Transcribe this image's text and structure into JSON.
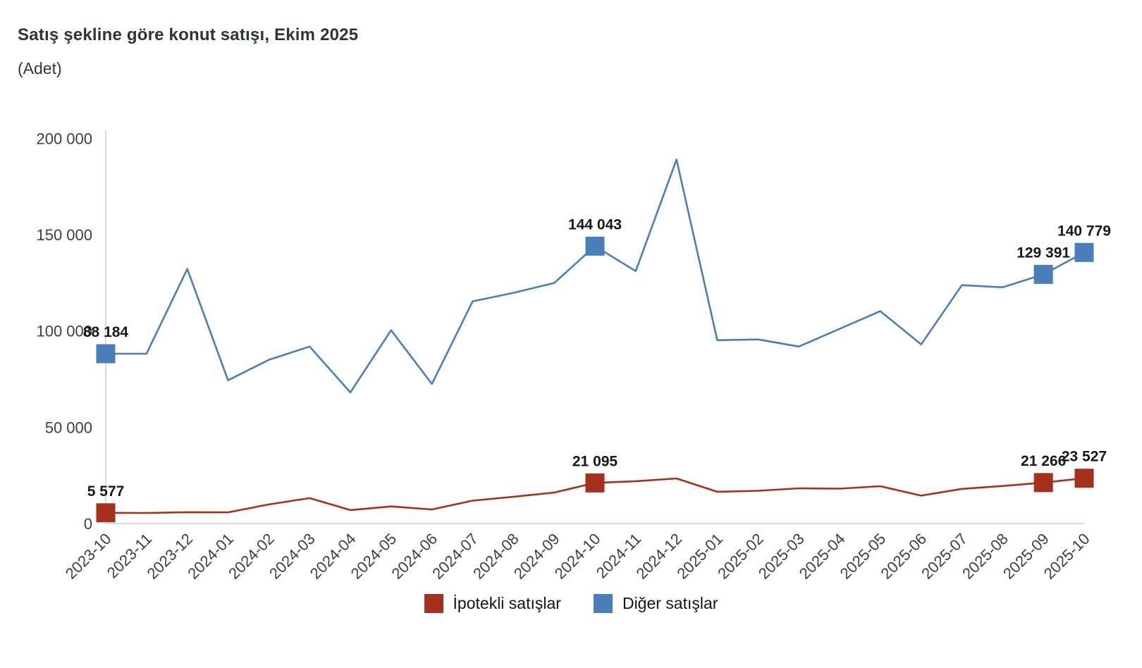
{
  "title": "Satış şekline göre konut satışı, Ekim 2025",
  "subtitle": "(Adet)",
  "colors": {
    "ipotekli": "#A5301E",
    "diger": "#4A7EBB",
    "axis_line": "#DBDBDB",
    "tick_text": "#3C4044",
    "annotation_text": "#15181b"
  },
  "legend": {
    "items": [
      {
        "id": "ipotekli",
        "label": "İpotekli satışlar",
        "color": "#A5301E"
      },
      {
        "id": "diger",
        "label": "Diğer satışlar",
        "color": "#4A7EBB"
      }
    ]
  },
  "chart_data": {
    "type": "line",
    "title": "Satış şekline göre konut satışı, Ekim 2025",
    "subtitle": "(Adet)",
    "x": [
      "2023-10",
      "2023-11",
      "2023-12",
      "2024-01",
      "2024-02",
      "2024-03",
      "2024-04",
      "2024-05",
      "2024-06",
      "2024-07",
      "2024-08",
      "2024-09",
      "2024-10",
      "2024-11",
      "2024-12",
      "2025-01",
      "2025-02",
      "2025-03",
      "2025-04",
      "2025-05",
      "2025-06",
      "2025-07",
      "2025-08",
      "2025-09",
      "2025-10"
    ],
    "ylim": [
      0,
      200000
    ],
    "yticks": [
      {
        "value": 0,
        "label": "0"
      },
      {
        "value": 50000,
        "label": "50 000"
      },
      {
        "value": 100000,
        "label": "100 000"
      },
      {
        "value": 150000,
        "label": "150 000"
      },
      {
        "value": 200000,
        "label": "200 000"
      }
    ],
    "grid": false,
    "legend_position": "bottom",
    "series": [
      {
        "name": "İpotekli satışlar",
        "color": "#A5301E",
        "values": [
          5577,
          5500,
          5900,
          5800,
          9900,
          13200,
          7000,
          8900,
          7300,
          11900,
          13900,
          16100,
          21095,
          22000,
          23400,
          16500,
          17000,
          18300,
          18100,
          19400,
          14500,
          18000,
          19500,
          21266,
          23527
        ],
        "annotations": [
          {
            "index": 0,
            "label": "5 577"
          },
          {
            "index": 12,
            "label": "21 095"
          },
          {
            "index": 23,
            "label": "21 266"
          },
          {
            "index": 24,
            "label": "23 527"
          }
        ]
      },
      {
        "name": "Diğer satışlar",
        "color": "#4A7EBB",
        "values": [
          88184,
          88200,
          132200,
          74400,
          85000,
          91900,
          68100,
          100400,
          72500,
          115400,
          119800,
          124900,
          144043,
          131100,
          189000,
          95200,
          95600,
          91900,
          101100,
          110300,
          93000,
          123800,
          122700,
          129391,
          140779
        ],
        "annotations": [
          {
            "index": 0,
            "label": "88 184"
          },
          {
            "index": 12,
            "label": "144 043"
          },
          {
            "index": 23,
            "label": "129 391"
          },
          {
            "index": 24,
            "label": "140 779"
          }
        ]
      }
    ]
  }
}
